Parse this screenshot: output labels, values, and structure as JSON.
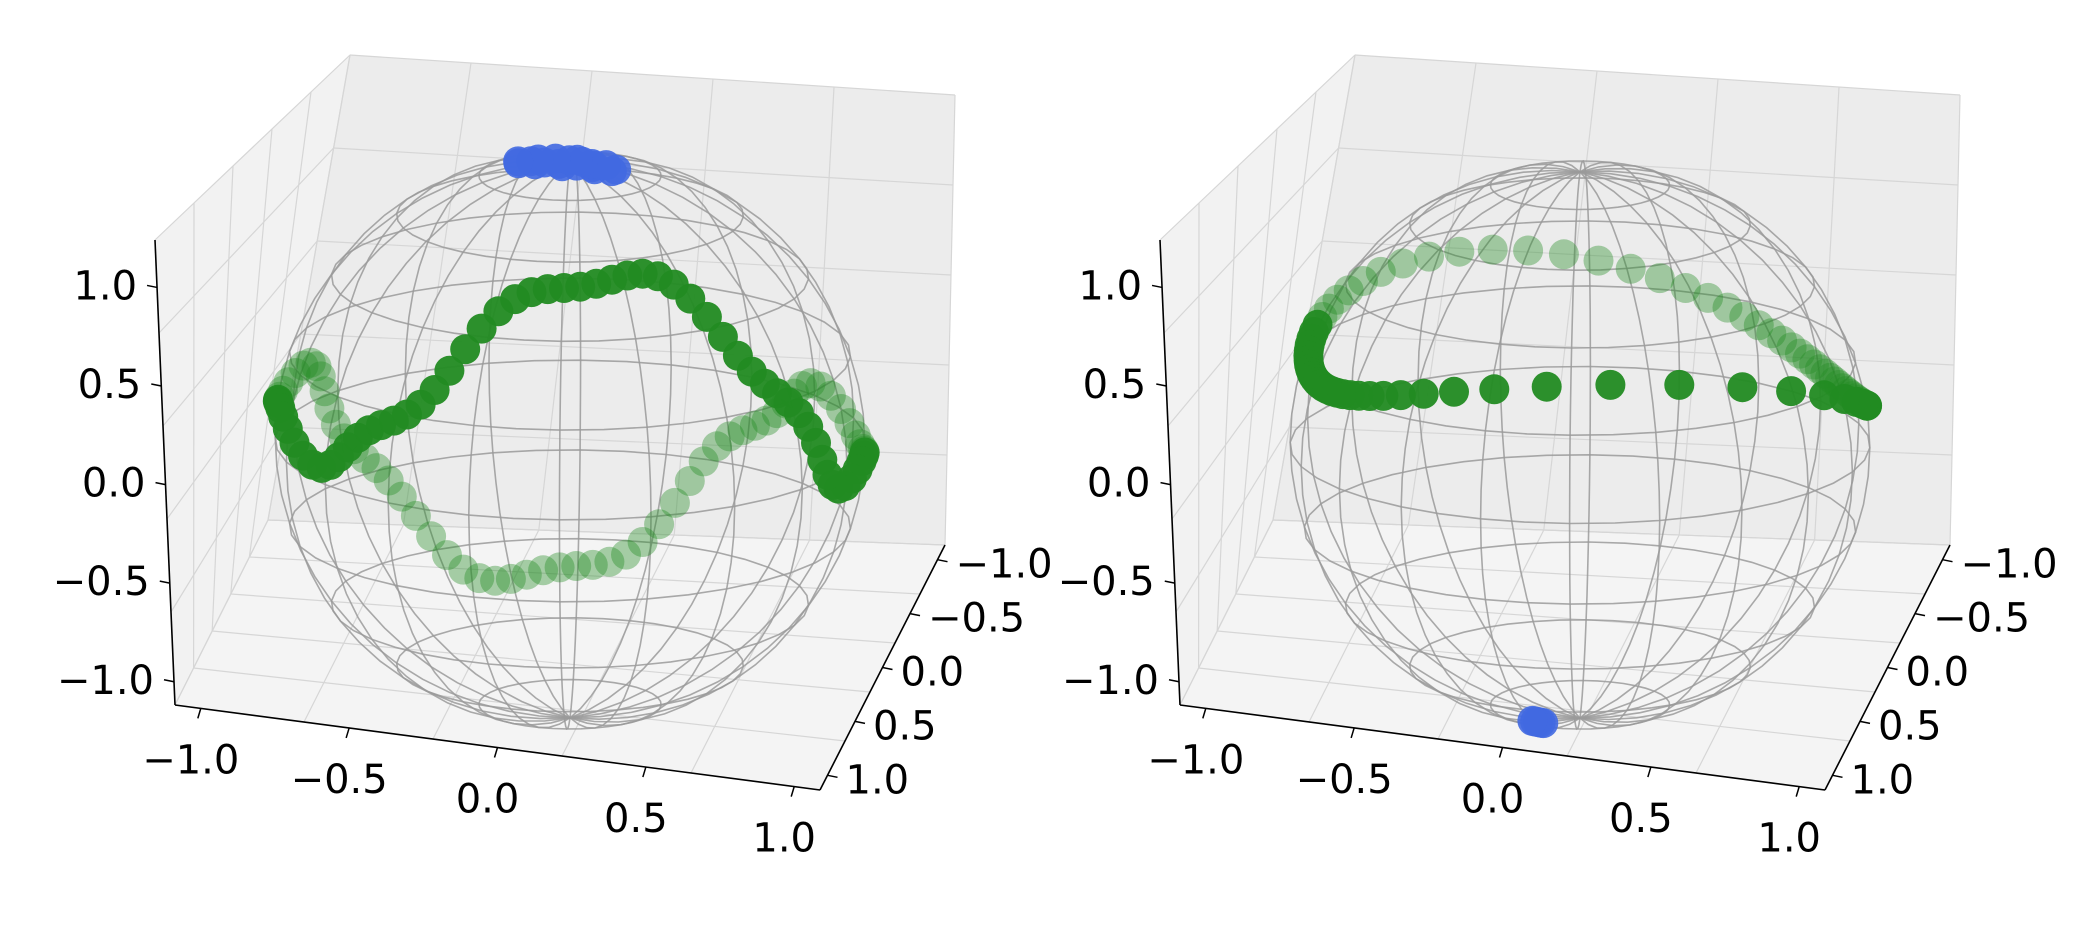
{
  "chart_data": [
    {
      "type": "scatter",
      "projection": "3d",
      "title": "",
      "xlabel": "",
      "ylabel": "",
      "zlabel": "",
      "xlim": [
        -1,
        1
      ],
      "ylim": [
        -1,
        1
      ],
      "zlim": [
        -1,
        1
      ],
      "x_ticks": [
        "−1.0",
        "−0.5",
        "0.0",
        "0.5",
        "1.0"
      ],
      "y_ticks": [
        "−1.0",
        "−0.5",
        "0.0",
        "0.5",
        "1.0"
      ],
      "z_ticks": [
        "−1.0",
        "−0.5",
        "0.0",
        "0.5",
        "1.0"
      ],
      "grid": true,
      "sphere_wireframe": true,
      "series": [
        {
          "color": "#4169e1",
          "description_points": "cluster at north pole (0, 0, 1)",
          "count_estimate": 20
        },
        {
          "color": "#228b22",
          "description_points": "wavy ring around equator, z between -0.35 and 0.35",
          "count_estimate": 110
        }
      ]
    },
    {
      "type": "scatter",
      "projection": "3d",
      "title": "",
      "xlabel": "",
      "ylabel": "",
      "zlabel": "",
      "xlim": [
        -1,
        1
      ],
      "ylim": [
        -1,
        1
      ],
      "zlim": [
        -1,
        1
      ],
      "x_ticks": [
        "−1.0",
        "−0.5",
        "0.0",
        "0.5",
        "1.0"
      ],
      "y_ticks": [
        "−1.0",
        "−0.5",
        "0.0",
        "0.5",
        "1.0"
      ],
      "z_ticks": [
        "−1.0",
        "−0.5",
        "0.0",
        "0.5",
        "1.0"
      ],
      "grid": true,
      "sphere_wireframe": true,
      "series": [
        {
          "color": "#4169e1",
          "description_points": "cluster at south pole (0, 0, -1)",
          "count_estimate": 5
        },
        {
          "color": "#228b22",
          "description_points": "tilted great circle ring",
          "count_estimate": 80
        }
      ]
    }
  ]
}
